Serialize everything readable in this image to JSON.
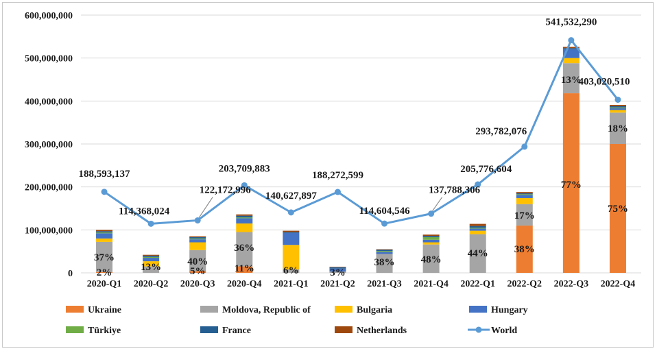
{
  "chart_data": {
    "type": "bar",
    "stacked": true,
    "categories": [
      "2020-Q1",
      "2020-Q2",
      "2020-Q3",
      "2020-Q4",
      "2021-Q1",
      "2021-Q2",
      "2021-Q3",
      "2021-Q4",
      "2022-Q1",
      "2022-Q2",
      "2022-Q3",
      "2022-Q4"
    ],
    "ylim": [
      0,
      600000000
    ],
    "yticks": [
      0,
      100000000,
      200000000,
      300000000,
      400000000,
      500000000,
      600000000
    ],
    "ytick_labels": [
      "0",
      "100,000,000",
      "200,000,000",
      "300,000,000",
      "400,000,000",
      "500,000,000",
      "600,000,000"
    ],
    "grid": true,
    "legend_position": "bottom",
    "series": [
      {
        "name": "Ukraine",
        "color": "#ED7D31",
        "values": [
          2000000,
          0,
          4000000,
          15000000,
          0,
          0,
          0,
          0,
          0,
          110000000,
          418000000,
          300000000
        ]
      },
      {
        "name": "Moldova, Republic of",
        "color": "#A5A5A5",
        "values": [
          70000000,
          15000000,
          49000000,
          80000000,
          8000000,
          3000000,
          44000000,
          66000000,
          90000000,
          50000000,
          70000000,
          73000000
        ]
      },
      {
        "name": "Bulgaria",
        "color": "#FFC000",
        "values": [
          8000000,
          12000000,
          18000000,
          20000000,
          57000000,
          0,
          0,
          5000000,
          8000000,
          14000000,
          12000000,
          6000000
        ]
      },
      {
        "name": "Hungary",
        "color": "#4472C4",
        "values": [
          12000000,
          8000000,
          7000000,
          12000000,
          28000000,
          7000000,
          5000000,
          6000000,
          5000000,
          7000000,
          20000000,
          4000000
        ]
      },
      {
        "name": "Türkiye",
        "color": "#70AD47",
        "values": [
          2000000,
          2000000,
          2000000,
          2000000,
          0,
          0,
          2000000,
          6000000,
          2000000,
          2000000,
          0,
          2000000
        ]
      },
      {
        "name": "France",
        "color": "#255E91",
        "values": [
          3000000,
          3000000,
          3000000,
          4000000,
          2000000,
          3000000,
          3000000,
          3000000,
          4000000,
          2000000,
          3000000,
          3000000
        ]
      },
      {
        "name": "Netherlands",
        "color": "#9E480E",
        "values": [
          3000000,
          2000000,
          2000000,
          3000000,
          3000000,
          1000000,
          1000000,
          3000000,
          5000000,
          3000000,
          3000000,
          3000000
        ]
      },
      {
        "name": "World",
        "type": "line",
        "color": "#5B9BD5",
        "values": [
          188593137,
          114368024,
          122172996,
          203709883,
          140627897,
          188272599,
          114604546,
          137788306,
          205776604,
          293782076,
          541532290,
          403020510
        ]
      }
    ],
    "world_labels": [
      "188,593,137",
      "114,368,024",
      "122,172,996",
      "203,709,883",
      "140,627,897",
      "188,272,599",
      "114,604,546",
      "137,788,306",
      "205,776,604",
      "293,782,076",
      "541,532,290",
      "403,020,510"
    ],
    "percent_labels": [
      {
        "category_index": 0,
        "text": "37%"
      },
      {
        "category_index": 0,
        "text": "2%"
      },
      {
        "category_index": 1,
        "text": "13%"
      },
      {
        "category_index": 2,
        "text": "40%"
      },
      {
        "category_index": 2,
        "text": "5%"
      },
      {
        "category_index": 3,
        "text": "36%"
      },
      {
        "category_index": 3,
        "text": "11%"
      },
      {
        "category_index": 4,
        "text": "6%"
      },
      {
        "category_index": 5,
        "text": "3%"
      },
      {
        "category_index": 6,
        "text": "38%"
      },
      {
        "category_index": 7,
        "text": "48%"
      },
      {
        "category_index": 8,
        "text": "44%"
      },
      {
        "category_index": 9,
        "text": "17%"
      },
      {
        "category_index": 9,
        "text": "38%"
      },
      {
        "category_index": 10,
        "text": "13%"
      },
      {
        "category_index": 10,
        "text": "77%"
      },
      {
        "category_index": 11,
        "text": "18%"
      },
      {
        "category_index": 11,
        "text": "75%"
      }
    ]
  }
}
